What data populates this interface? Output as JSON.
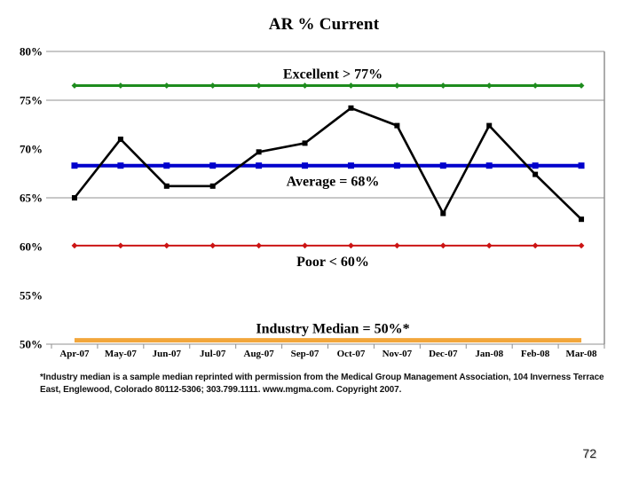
{
  "slide": {
    "title": "AR % Current",
    "page_number": "72",
    "footnote_lines": [
      "*Industry median is a sample median reprinted with permission from the Medical Group Management Association, 104 Inverness Terrace",
      "East, Englewood, Colorado 80112-5306; 303.799.1111.  www.mgma.com.  Copyright 2007."
    ]
  },
  "chart_data": {
    "type": "line",
    "title": "AR % Current",
    "categories": [
      "Apr-07",
      "May-07",
      "Jun-07",
      "Jul-07",
      "Aug-07",
      "Sep-07",
      "Oct-07",
      "Nov-07",
      "Dec-07",
      "Jan-08",
      "Feb-08",
      "Mar-08"
    ],
    "series": [
      {
        "name": "AR % Current",
        "color": "#000000",
        "marker": "square",
        "values": [
          65.0,
          71.0,
          66.2,
          66.2,
          69.7,
          70.6,
          74.2,
          72.4,
          63.4,
          72.4,
          67.4,
          62.8
        ]
      }
    ],
    "reference_lines": [
      {
        "name": "excellent",
        "label": "Excellent > 77%",
        "value": 76.5,
        "color": "#1E8C1E",
        "marker": "diamond",
        "width": 3,
        "label_position": "above"
      },
      {
        "name": "average",
        "label": "Average = 68%",
        "value": 68.3,
        "color": "#0000CC",
        "marker": "square",
        "width": 4,
        "label_position": "below"
      },
      {
        "name": "poor",
        "label": "Poor < 60%",
        "value": 60.1,
        "color": "#CC1414",
        "marker": "diamond",
        "width": 2,
        "label_position": "below"
      },
      {
        "name": "industry-median",
        "label": "Industry Median = 50%*",
        "value": 50.4,
        "color": "#F2A63B",
        "marker": "none",
        "width": 5,
        "label_position": "above"
      }
    ],
    "ylim": [
      50,
      80
    ],
    "ytick_values": [
      80,
      75,
      70,
      65,
      60,
      55,
      50
    ],
    "ytick_labels": [
      "80%",
      "75%",
      "70%",
      "65%",
      "60%",
      "55%",
      "50%"
    ],
    "gridlines_at": [
      80,
      75,
      65
    ],
    "grid_color": "#909090",
    "legend": "none"
  }
}
